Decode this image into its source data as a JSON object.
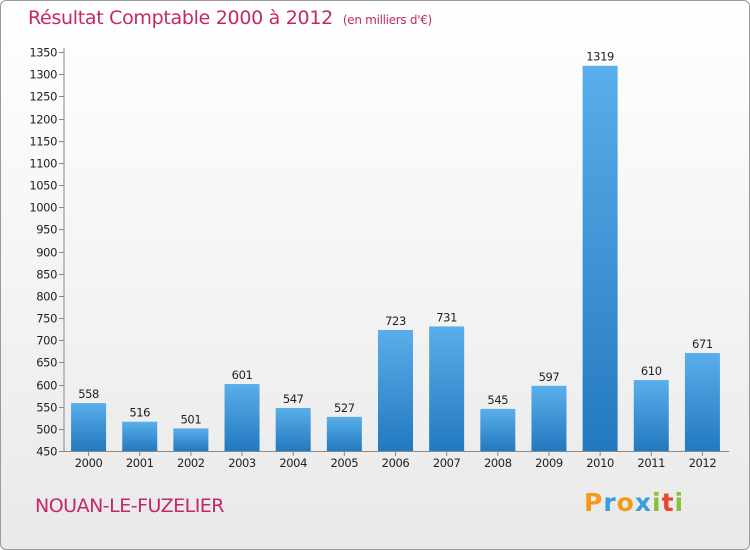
{
  "chart_data": {
    "type": "bar",
    "title": "Résultat Comptable 2000 à 2012",
    "subtitle": "(en milliers d'€)",
    "categories": [
      "2000",
      "2001",
      "2002",
      "2003",
      "2004",
      "2005",
      "2006",
      "2007",
      "2008",
      "2009",
      "2010",
      "2011",
      "2012"
    ],
    "values": [
      558,
      516,
      501,
      601,
      547,
      527,
      723,
      731,
      545,
      597,
      1319,
      610,
      671
    ],
    "ylim": [
      450,
      1350
    ],
    "ytick_step": 50,
    "xlabel": "",
    "ylabel": "",
    "grid": false,
    "legend": "none",
    "bar_color_top": "#5aaeea",
    "bar_color_bottom": "#2379bf"
  },
  "location": "NOUAN-LE-FUZELIER",
  "brand": {
    "letters": [
      "P",
      "r",
      "o",
      "x",
      "i",
      "t",
      "i"
    ],
    "colors": [
      "#f39a1a",
      "#3a9fd9",
      "#f39a1a",
      "#3a9fd9",
      "#86c13b",
      "#e8462e",
      "#86c13b"
    ]
  }
}
